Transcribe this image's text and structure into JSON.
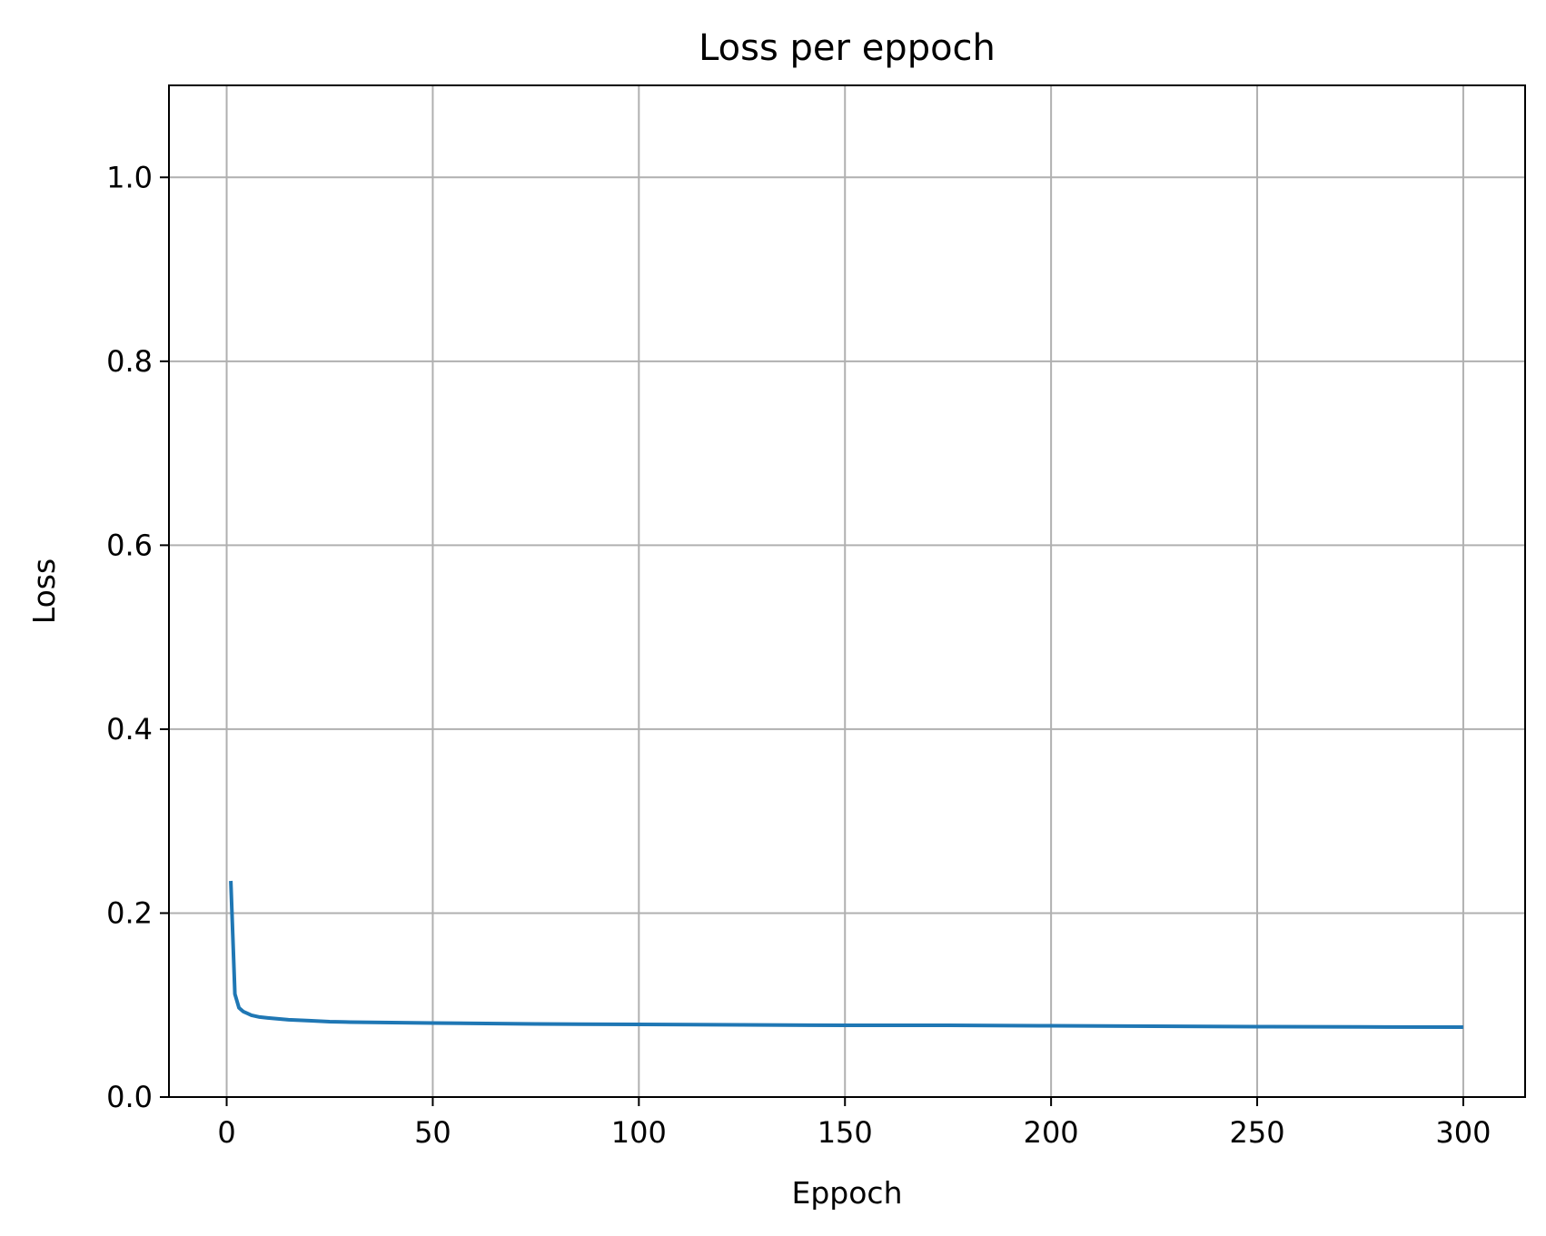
{
  "chart_data": {
    "type": "line",
    "title": "Loss per eppoch",
    "xlabel": "Eppoch",
    "ylabel": "Loss",
    "xlim": [
      -14,
      315
    ],
    "ylim": [
      0,
      1.1
    ],
    "xticks": [
      0,
      50,
      100,
      150,
      200,
      250,
      300
    ],
    "yticks": [
      0.0,
      0.2,
      0.4,
      0.6,
      0.8,
      1.0
    ],
    "xtick_labels": [
      "0",
      "50",
      "100",
      "150",
      "200",
      "250",
      "300"
    ],
    "ytick_labels": [
      "0.0",
      "0.2",
      "0.4",
      "0.6",
      "0.8",
      "1.0"
    ],
    "grid": true,
    "series": [
      {
        "color": "#1f77b4",
        "x": [
          1,
          2,
          3,
          4,
          5,
          6,
          8,
          10,
          15,
          20,
          25,
          30,
          40,
          50,
          75,
          100,
          125,
          150,
          175,
          200,
          225,
          250,
          275,
          300
        ],
        "y": [
          0.235,
          0.112,
          0.097,
          0.093,
          0.091,
          0.089,
          0.087,
          0.086,
          0.084,
          0.083,
          0.082,
          0.0815,
          0.081,
          0.0805,
          0.0795,
          0.079,
          0.0785,
          0.078,
          0.078,
          0.0775,
          0.077,
          0.0765,
          0.0762,
          0.076
        ]
      }
    ]
  }
}
